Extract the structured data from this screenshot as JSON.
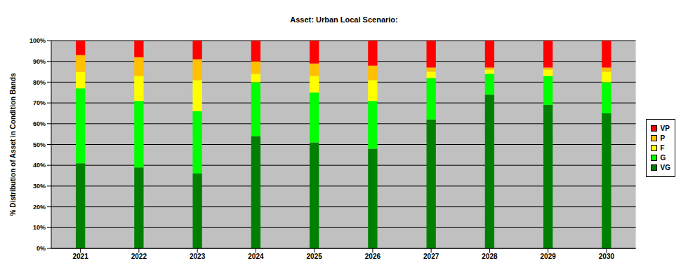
{
  "chart_data": {
    "type": "bar",
    "title": "Asset: Urban Local Scenario:",
    "y_label": "% Distribution of Asset in Condition Bands",
    "categories": [
      "2021",
      "2022",
      "2023",
      "2024",
      "2025",
      "2026",
      "2027",
      "2028",
      "2029",
      "2030"
    ],
    "series": [
      {
        "name": "VG",
        "color": "#008000",
        "values": [
          41,
          39,
          36,
          54,
          51,
          48,
          62,
          74,
          69,
          65
        ]
      },
      {
        "name": "G",
        "color": "#00ff00",
        "values": [
          36,
          32,
          30,
          26,
          24,
          23,
          20,
          10,
          14,
          15
        ]
      },
      {
        "name": "F",
        "color": "#ffff00",
        "values": [
          8,
          12,
          15,
          4,
          8,
          10,
          3,
          2,
          3,
          5
        ]
      },
      {
        "name": "P",
        "color": "#ffc000",
        "values": [
          8,
          9,
          10,
          6,
          6,
          7,
          2,
          1,
          1,
          2
        ]
      },
      {
        "name": "VP",
        "color": "#ff0000",
        "values": [
          7,
          8,
          9,
          10,
          11,
          12,
          13,
          13,
          13,
          13
        ]
      }
    ],
    "ylim": [
      0,
      100
    ],
    "yticks": [
      {
        "value": 0,
        "label": "0%"
      },
      {
        "value": 10,
        "label": "10%"
      },
      {
        "value": 20,
        "label": "20%"
      },
      {
        "value": 30,
        "label": "30%"
      },
      {
        "value": 40,
        "label": "40%"
      },
      {
        "value": 50,
        "label": "50%"
      },
      {
        "value": 60,
        "label": "60%"
      },
      {
        "value": 70,
        "label": "70%"
      },
      {
        "value": 80,
        "label": "80%"
      },
      {
        "value": 90,
        "label": "90%"
      },
      {
        "value": 100,
        "label": "100%"
      }
    ],
    "stacked": true,
    "grid": true,
    "legend": "right"
  }
}
